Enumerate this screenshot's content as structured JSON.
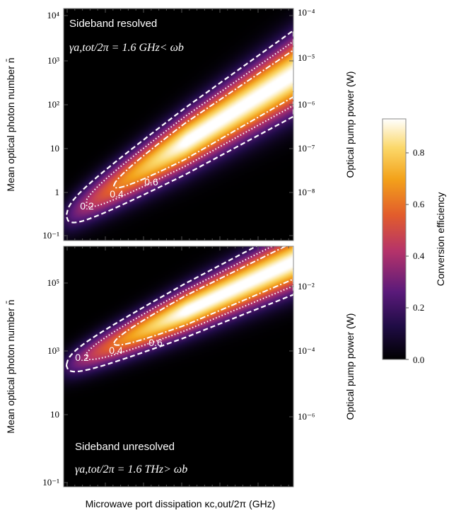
{
  "chart_data": [
    {
      "type": "heatmap",
      "annotation": "Sideband resolved",
      "condition_text": "γa,tot/2π = 1.6 GHz< ωb",
      "ylabel": "Mean optical photon number n̄",
      "y_right_label": "Optical pump power  (W)",
      "y_scale": "log",
      "y_ticks": [
        "10⁻¹",
        "1",
        "10",
        "10²",
        "10³",
        "10⁴"
      ],
      "y_right_ticks": [
        "10⁻⁸",
        "10⁻⁷",
        "10⁻⁶",
        "10⁻⁵",
        "10⁻⁴"
      ],
      "contours": [
        {
          "level": 0.2,
          "label": "0.2",
          "style": "dashed"
        },
        {
          "level": 0.4,
          "label": "0.4",
          "style": "dotted"
        },
        {
          "level": 0.6,
          "label": "0.6",
          "style": "dash-dot"
        }
      ],
      "peak_efficiency": 0.93
    },
    {
      "type": "heatmap",
      "annotation": "Sideband unresolved",
      "condition_text": "γa,tot/2π = 1.6 THz> ωb",
      "ylabel": "Mean optical photon number n̄",
      "y_right_label": "Optical pump power  (W)",
      "xlabel": "Microwave port dissipation κc,out/2π  (GHz)",
      "y_scale": "log",
      "y_ticks": [
        "10⁻¹",
        "10",
        "10³",
        "10⁵"
      ],
      "y_right_ticks": [
        "10⁻⁶",
        "10⁻⁴",
        "10⁻²"
      ],
      "contours": [
        {
          "level": 0.2,
          "label": "0.2",
          "style": "dashed"
        },
        {
          "level": 0.4,
          "label": "0.4",
          "style": "dotted"
        },
        {
          "level": 0.6,
          "label": "0.6",
          "style": "dash-dot"
        }
      ],
      "peak_efficiency": 0.93
    }
  ],
  "colorbar": {
    "label": "Conversion efficiency",
    "ticks": [
      "0.0",
      "0.2",
      "0.4",
      "0.6",
      "0.8"
    ],
    "range": [
      0,
      0.93
    ],
    "colormap": [
      "#000000",
      "#200c46",
      "#5a1a7a",
      "#b5336a",
      "#e25c2c",
      "#f3a21a",
      "#fbd86a",
      "#ffffff"
    ]
  }
}
